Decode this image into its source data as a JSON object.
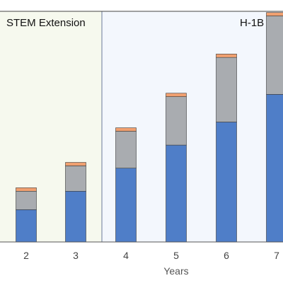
{
  "chart_data": {
    "type": "bar",
    "stacked": true,
    "xlabel": "Years",
    "ylabel": "",
    "categories": [
      "2",
      "3",
      "4",
      "5",
      "6",
      "7"
    ],
    "ylim": [
      0,
      100
    ],
    "series": [
      {
        "color": "#4f7ec8",
        "values": [
          14,
          22,
          32,
          42,
          52,
          64
        ]
      },
      {
        "color": "#a9acb0",
        "values": [
          8,
          11,
          16,
          21,
          28,
          34
        ]
      },
      {
        "color": "#f0a070",
        "values": [
          1.5,
          1.5,
          1.5,
          1.5,
          1.5,
          1.5
        ]
      }
    ],
    "regions": [
      {
        "label": "STEM Extension",
        "fill": "#f6f9ee",
        "from_index": 0,
        "to_index": 1
      },
      {
        "label": "H-1B",
        "fill": "#f3f7fd",
        "from_index": 2,
        "to_index": 5
      }
    ],
    "grid": false,
    "legend": "none"
  }
}
